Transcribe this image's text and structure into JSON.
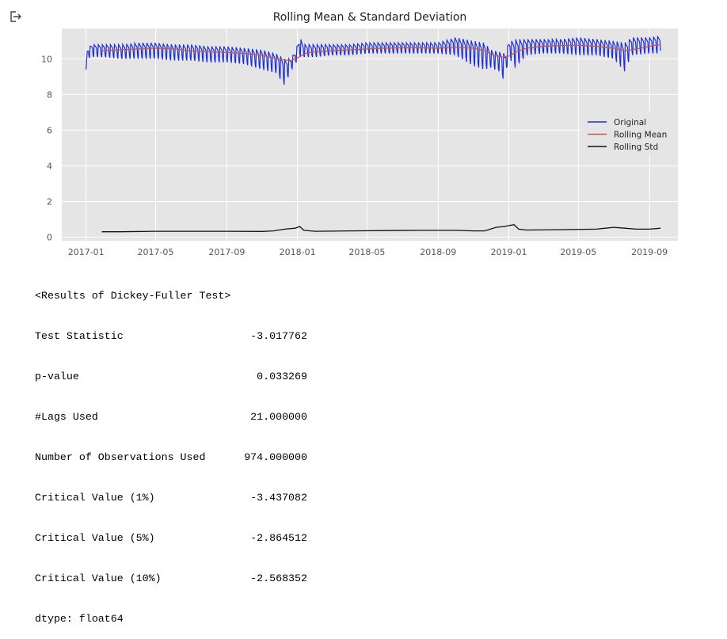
{
  "output_icon": "output-arrow-icon",
  "chart_data": {
    "type": "line",
    "title": "Rolling Mean & Standard Deviation",
    "xlabel": "",
    "ylabel": "",
    "x_tick_labels": [
      "2017-01",
      "2017-05",
      "2017-09",
      "2018-01",
      "2018-05",
      "2018-09",
      "2019-01",
      "2019-05",
      "2019-09"
    ],
    "y_tick_labels": [
      "0",
      "2",
      "4",
      "6",
      "8",
      "10"
    ],
    "ylim": [
      -0.2,
      11.7
    ],
    "xlim": [
      "2016-11-20",
      "2019-10-20"
    ],
    "grid": true,
    "background": "#e5e5e5",
    "legend_position": "right",
    "series": [
      {
        "name": "Original",
        "color": "#1f2fd4",
        "pattern": "weekly oscillation between ~10.0 and ~10.9 around the rolling mean, daily points",
        "x": [
          "2017-01-01",
          "2017-01-03",
          "2017-01-10",
          "2017-02-01",
          "2017-03-01",
          "2017-04-01",
          "2017-05-01",
          "2017-06-01",
          "2017-07-01",
          "2017-08-01",
          "2017-09-01",
          "2017-10-01",
          "2017-11-01",
          "2017-11-25",
          "2017-12-10",
          "2017-12-20",
          "2017-12-28",
          "2018-01-05",
          "2018-01-12",
          "2018-02-01",
          "2018-03-01",
          "2018-04-01",
          "2018-05-01",
          "2018-06-01",
          "2018-07-01",
          "2018-08-01",
          "2018-09-01",
          "2018-10-01",
          "2018-11-01",
          "2018-11-20",
          "2018-12-01",
          "2018-12-15",
          "2018-12-25",
          "2019-01-01",
          "2019-01-06",
          "2019-01-12",
          "2019-02-01",
          "2019-03-01",
          "2019-04-01",
          "2019-05-01",
          "2019-06-01",
          "2019-07-01",
          "2019-07-20",
          "2019-08-01",
          "2019-09-01",
          "2019-09-20"
        ],
        "upper": [
          9.4,
          10.5,
          10.8,
          10.8,
          10.8,
          10.9,
          10.9,
          10.8,
          10.8,
          10.7,
          10.7,
          10.6,
          10.5,
          10.3,
          10.0,
          10.0,
          10.4,
          11.2,
          10.8,
          10.8,
          10.8,
          10.8,
          10.9,
          10.9,
          10.9,
          10.9,
          10.9,
          11.2,
          11.0,
          10.9,
          10.5,
          10.4,
          10.3,
          10.9,
          11.0,
          11.1,
          11.1,
          11.1,
          11.1,
          11.2,
          11.1,
          11.0,
          10.9,
          11.2,
          11.2,
          11.3
        ],
        "lower": [
          9.4,
          10.0,
          10.1,
          10.1,
          10.0,
          10.0,
          10.0,
          9.9,
          9.9,
          9.8,
          9.8,
          9.7,
          9.4,
          9.2,
          8.5,
          9.3,
          9.7,
          10.1,
          10.1,
          10.1,
          10.2,
          10.2,
          10.3,
          10.3,
          10.3,
          10.3,
          10.3,
          10.2,
          9.6,
          9.4,
          9.5,
          9.3,
          8.7,
          10.2,
          9.8,
          9.5,
          10.2,
          10.3,
          10.3,
          10.2,
          10.2,
          10.0,
          9.3,
          10.2,
          10.3,
          10.3
        ]
      },
      {
        "name": "Rolling Mean",
        "color": "#c55a4a",
        "x": [
          "2017-01-28",
          "2017-03-01",
          "2017-04-01",
          "2017-05-01",
          "2017-06-01",
          "2017-07-01",
          "2017-08-01",
          "2017-09-01",
          "2017-10-01",
          "2017-11-01",
          "2017-11-20",
          "2017-12-05",
          "2017-12-20",
          "2018-01-01",
          "2018-01-15",
          "2018-02-01",
          "2018-03-01",
          "2018-04-01",
          "2018-05-01",
          "2018-06-01",
          "2018-07-01",
          "2018-08-01",
          "2018-09-01",
          "2018-10-01",
          "2018-11-01",
          "2018-11-20",
          "2018-12-05",
          "2018-12-20",
          "2019-01-01",
          "2019-01-15",
          "2019-02-01",
          "2019-03-01",
          "2019-04-01",
          "2019-05-01",
          "2019-06-01",
          "2019-07-01",
          "2019-07-20",
          "2019-08-10",
          "2019-09-01",
          "2019-09-20"
        ],
        "values": [
          10.45,
          10.5,
          10.55,
          10.6,
          10.55,
          10.45,
          10.4,
          10.35,
          10.3,
          10.2,
          10.05,
          9.95,
          9.9,
          10.05,
          10.3,
          10.4,
          10.45,
          10.5,
          10.55,
          10.6,
          10.62,
          10.62,
          10.6,
          10.65,
          10.6,
          10.45,
          10.2,
          10.1,
          10.15,
          10.4,
          10.6,
          10.7,
          10.75,
          10.75,
          10.7,
          10.6,
          10.45,
          10.55,
          10.7,
          10.8
        ]
      },
      {
        "name": "Rolling Std",
        "color": "#111111",
        "x": [
          "2017-01-28",
          "2017-03-01",
          "2017-05-01",
          "2017-07-01",
          "2017-09-01",
          "2017-11-01",
          "2017-11-20",
          "2017-12-10",
          "2017-12-28",
          "2018-01-05",
          "2018-01-12",
          "2018-02-01",
          "2018-04-01",
          "2018-06-01",
          "2018-08-01",
          "2018-10-01",
          "2018-11-01",
          "2018-11-20",
          "2018-12-10",
          "2018-12-25",
          "2019-01-01",
          "2019-01-10",
          "2019-01-18",
          "2019-02-01",
          "2019-04-01",
          "2019-06-01",
          "2019-07-01",
          "2019-07-20",
          "2019-08-10",
          "2019-09-01",
          "2019-09-20"
        ],
        "values": [
          0.3,
          0.3,
          0.33,
          0.33,
          0.33,
          0.32,
          0.35,
          0.45,
          0.5,
          0.6,
          0.38,
          0.33,
          0.35,
          0.37,
          0.38,
          0.38,
          0.35,
          0.35,
          0.55,
          0.6,
          0.65,
          0.7,
          0.45,
          0.4,
          0.42,
          0.45,
          0.55,
          0.5,
          0.45,
          0.45,
          0.5
        ]
      }
    ]
  },
  "results": {
    "header": "<Results of Dickey-Fuller Test>",
    "rows": [
      {
        "label": "Test Statistic",
        "value": "-3.017762"
      },
      {
        "label": "p-value",
        "value": "0.033269"
      },
      {
        "label": "#Lags Used",
        "value": "21.000000"
      },
      {
        "label": "Number of Observations Used",
        "value": "974.000000"
      },
      {
        "label": "Critical Value (1%)",
        "value": "-3.437082"
      },
      {
        "label": "Critical Value (5%)",
        "value": "-2.864512"
      },
      {
        "label": "Critical Value (10%)",
        "value": "-2.568352"
      }
    ],
    "dtype": "dtype: float64"
  }
}
